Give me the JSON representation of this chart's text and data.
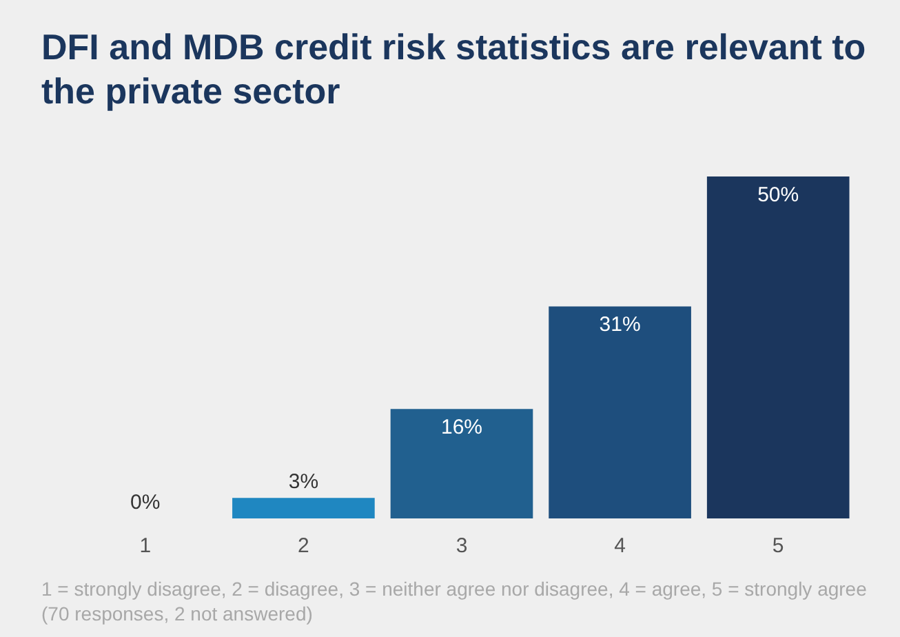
{
  "chart_data": {
    "type": "bar",
    "title": "DFI and MDB credit risk statistics are relevant to the private sector",
    "categories": [
      "1",
      "2",
      "3",
      "4",
      "5"
    ],
    "values": [
      0,
      3,
      16,
      31,
      50
    ],
    "colors": [
      "#d6dde6",
      "#1f87c1",
      "#21608f",
      "#1e4e7d",
      "#1b365d"
    ],
    "value_labels": [
      "0%",
      "3%",
      "16%",
      "31%",
      "50%"
    ],
    "annotations": [
      "1 = strongly disagree, 2 = disagree, 3 = neither agree nor disagree, 4 = agree, 5 = strongly agree (70 responses, 2 not answered)"
    ]
  }
}
